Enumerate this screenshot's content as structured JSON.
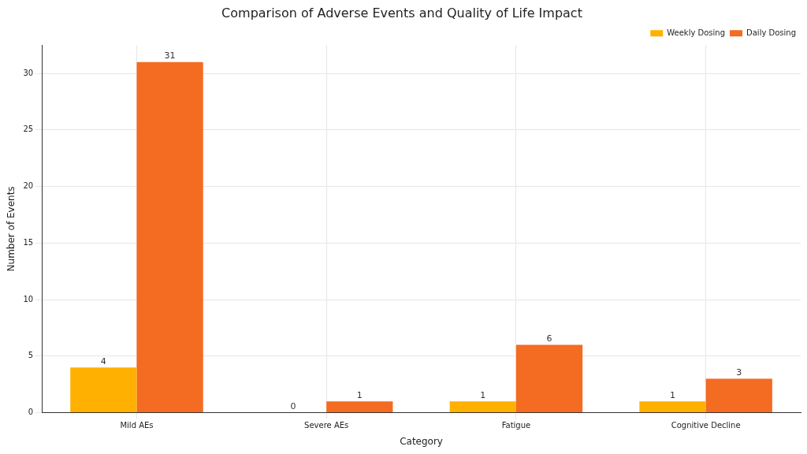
{
  "chart_data": {
    "type": "bar",
    "title": "Comparison of Adverse Events and Quality of Life Impact",
    "x_label": "Category",
    "y_label": "Number of Events",
    "categories": [
      "Mild AEs",
      "Severe AEs",
      "Fatigue",
      "Cognitive Decline"
    ],
    "series": [
      {
        "name": "Weekly Dosing",
        "color": "#ffb000",
        "values": [
          4,
          0,
          1,
          1
        ]
      },
      {
        "name": "Daily Dosing",
        "color": "#f46b22",
        "values": [
          31,
          1,
          6,
          3
        ]
      }
    ],
    "ylim": [
      0,
      32.5
    ],
    "yticks": [
      0,
      5,
      10,
      15,
      20,
      25,
      30
    ],
    "grid": true,
    "legend": "upper right",
    "data_labels": true
  }
}
